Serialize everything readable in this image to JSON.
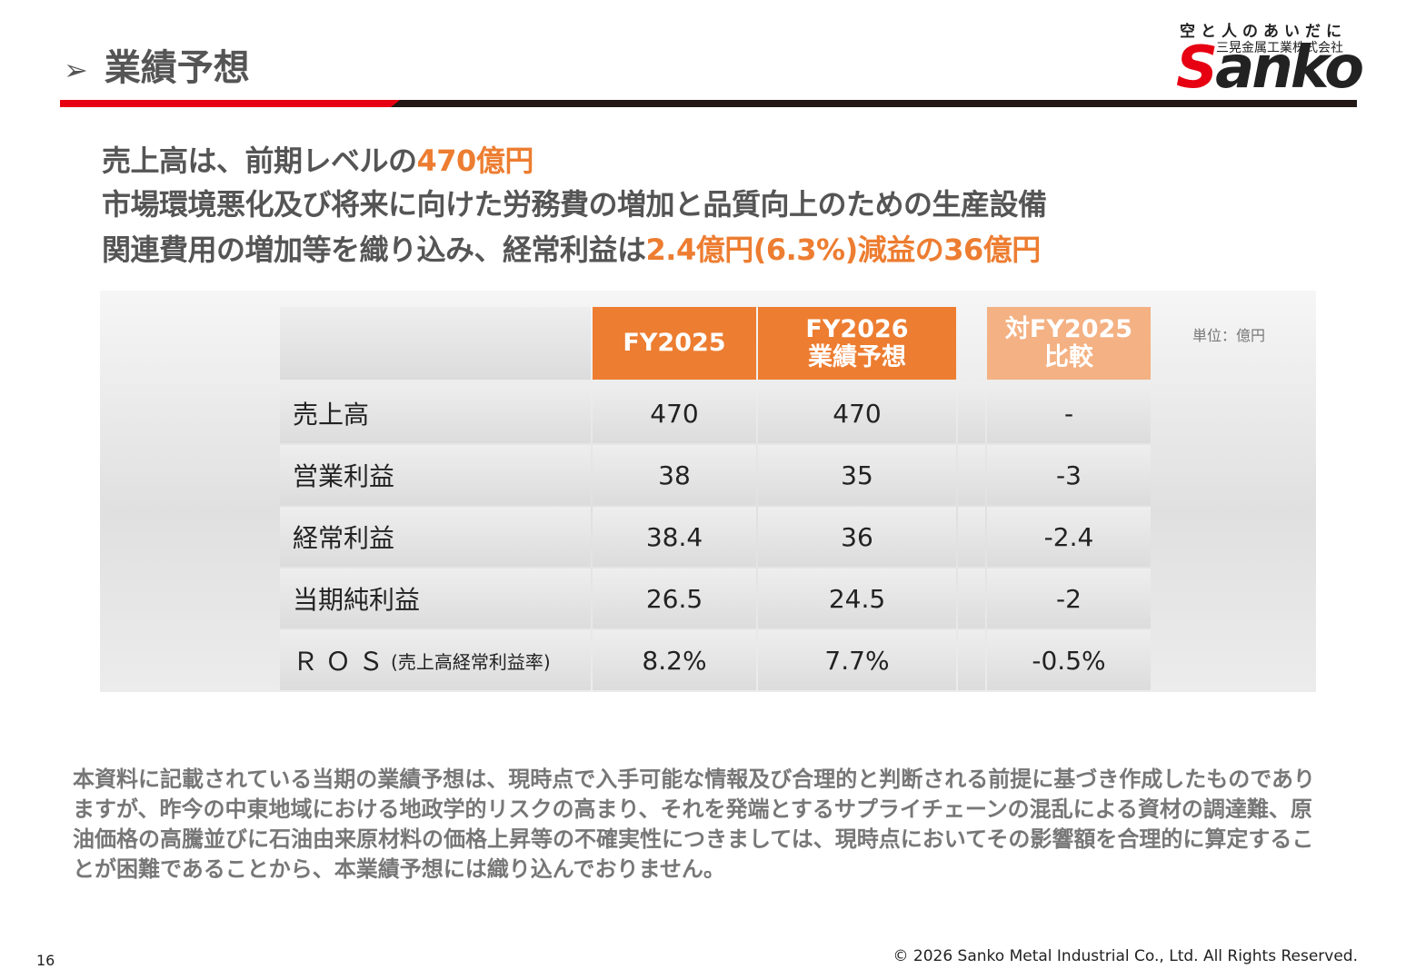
{
  "header": {
    "title": "業績予想",
    "logo": {
      "tagline": "空と人のあいだに",
      "company": "三晃金属工業株式会社",
      "brand": "Sanko"
    }
  },
  "headline": {
    "line1": {
      "text": "売上高は、前期レベルの",
      "highlight": "470億円"
    },
    "line2": {
      "text": "市場環境悪化及び将来に向けた労務費の増加と品質向上のための生産設備"
    },
    "line3": {
      "text": "関連費用の増加等を織り込み、経常利益は",
      "highlight": "2.4億円(6.3%)減益の36億円"
    }
  },
  "table": {
    "unit": "単位：億円",
    "headers": [
      [
        "FY2025"
      ],
      [
        "FY2026",
        "業績予想"
      ],
      [
        "対FY2025",
        "比較"
      ]
    ],
    "rows": [
      [
        "売上高",
        "470",
        "470",
        "-"
      ],
      [
        "営業利益",
        "38",
        "35",
        "-3"
      ],
      [
        "経常利益",
        "38.4",
        "36",
        "-2.4"
      ],
      [
        "当期純利益",
        "26.5",
        "24.5",
        "-2"
      ],
      [
        "ＲＯＳ",
        "8.2%",
        "7.7%",
        "-0.5%"
      ]
    ],
    "ros_note": "(売上高経常利益率)"
  },
  "note": "本資料に記載されている当期の業績予想は、現時点で入手可能な情報及び合理的と判断される前提に基づき作成したものでありますが、昨今の中東地域における地政学的リスクの高まり、それを発端とするサプライチェーンの混乱による資材の調達難、原油価格の高騰並びに石油由来原材料の価格上昇等の不確実性につきましては、現時点においてその影響額を合理的に算定することが困難であることから、本業績予想には織り込んでおりません。",
  "footer": {
    "page": "16",
    "copyright": "© 2026 Sanko Metal Industrial Co., Ltd. All Rights Reserved."
  }
}
